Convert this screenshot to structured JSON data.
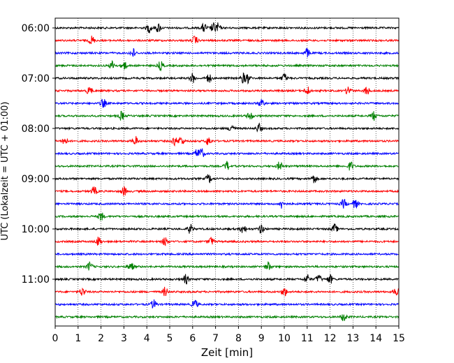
{
  "chart_data": {
    "type": "line",
    "title": "",
    "xlabel": "Zeit  [min]",
    "ylabel": "UTC (Lokalzeit = UTC + 01:00)",
    "xlim": [
      0,
      15
    ],
    "x_ticks": [
      0,
      1,
      2,
      3,
      4,
      5,
      6,
      7,
      8,
      9,
      10,
      11,
      12,
      13,
      14,
      15
    ],
    "y_tick_labels": [
      "06:00",
      "07:00",
      "08:00",
      "09:00",
      "10:00",
      "11:00"
    ],
    "grid": "vertical dotted",
    "trace_interval_minutes": 15,
    "start_time": "06:00",
    "trace_colors": [
      "#000000",
      "#ff0000",
      "#0000ff",
      "#008000"
    ],
    "traces": [
      {
        "start": "06:00",
        "color": "#000000",
        "events": [
          4.1,
          4.5,
          6.5,
          6.9,
          7.1
        ]
      },
      {
        "start": "06:15",
        "color": "#ff0000",
        "events": [
          1.6,
          6.1
        ]
      },
      {
        "start": "06:30",
        "color": "#0000ff",
        "events": [
          3.4,
          11.0
        ]
      },
      {
        "start": "06:45",
        "color": "#008000",
        "events": [
          2.5,
          3.0,
          4.6
        ]
      },
      {
        "start": "07:00",
        "color": "#000000",
        "events": [
          6.0,
          6.7,
          8.2,
          8.4,
          10.0
        ]
      },
      {
        "start": "07:15",
        "color": "#ff0000",
        "events": [
          1.5,
          11.0,
          12.8,
          13.6
        ]
      },
      {
        "start": "07:30",
        "color": "#0000ff",
        "events": [
          2.1,
          9.0
        ]
      },
      {
        "start": "07:45",
        "color": "#008000",
        "events": [
          2.9,
          8.5,
          13.9
        ]
      },
      {
        "start": "08:00",
        "color": "#000000",
        "events": [
          7.7,
          8.9
        ]
      },
      {
        "start": "08:15",
        "color": "#ff0000",
        "events": [
          0.4,
          3.5,
          5.2,
          5.5,
          6.7
        ]
      },
      {
        "start": "08:30",
        "color": "#0000ff",
        "events": [
          6.2,
          6.4
        ]
      },
      {
        "start": "08:45",
        "color": "#008000",
        "events": [
          7.5,
          9.8,
          12.9
        ]
      },
      {
        "start": "09:00",
        "color": "#000000",
        "events": [
          6.7,
          11.3
        ]
      },
      {
        "start": "09:15",
        "color": "#ff0000",
        "events": [
          1.7,
          3.0
        ]
      },
      {
        "start": "09:30",
        "color": "#0000ff",
        "events": [
          9.9,
          12.6,
          13.1
        ]
      },
      {
        "start": "09:45",
        "color": "#008000",
        "events": [
          2.0
        ]
      },
      {
        "start": "10:00",
        "color": "#000000",
        "events": [
          5.9,
          8.2,
          9.0,
          12.2
        ]
      },
      {
        "start": "10:15",
        "color": "#ff0000",
        "events": [
          1.9,
          4.8,
          6.8
        ]
      },
      {
        "start": "10:30",
        "color": "#0000ff",
        "events": []
      },
      {
        "start": "10:45",
        "color": "#008000",
        "events": [
          1.5,
          3.3,
          9.3
        ]
      },
      {
        "start": "11:00",
        "color": "#000000",
        "events": [
          5.7,
          11.0,
          11.5,
          12.0
        ]
      },
      {
        "start": "11:15",
        "color": "#ff0000",
        "events": [
          1.2,
          4.8,
          10.0,
          14.9
        ]
      },
      {
        "start": "11:30",
        "color": "#0000ff",
        "events": [
          4.3,
          6.1
        ]
      },
      {
        "start": "11:45",
        "color": "#008000",
        "events": [
          12.6
        ]
      }
    ]
  }
}
